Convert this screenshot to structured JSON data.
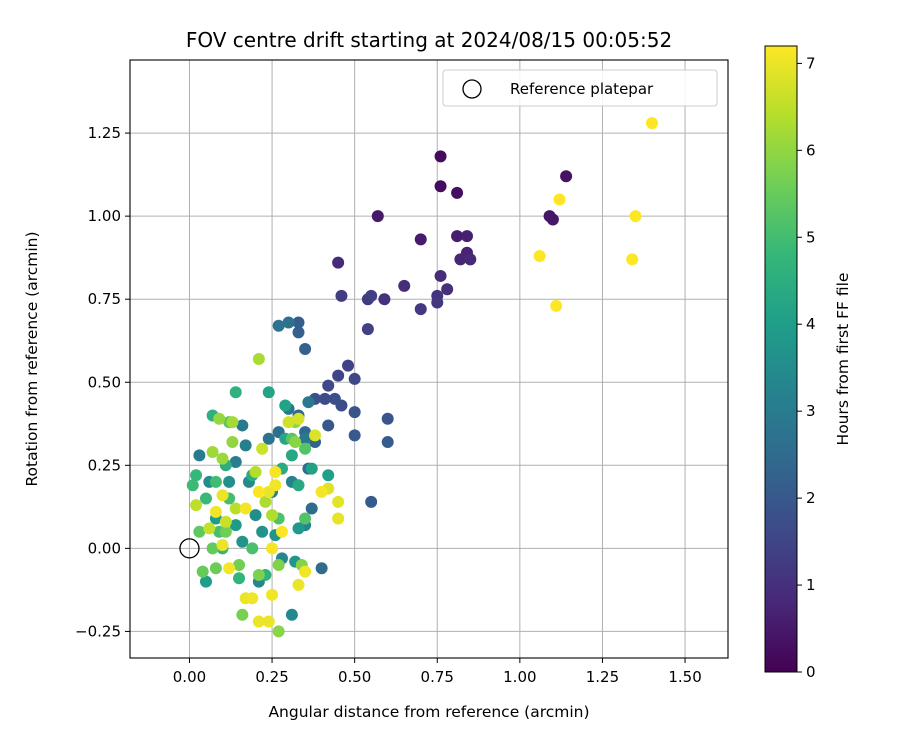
{
  "chart_data": {
    "type": "scatter",
    "title": "FOV centre drift starting at 2024/08/15 00:05:52",
    "xlabel": "Angular distance from reference (arcmin)",
    "ylabel": "Rotation from reference (arcmin)",
    "xlim": [
      -0.18,
      1.63
    ],
    "ylim": [
      -0.33,
      1.47
    ],
    "xticks": [
      0.0,
      0.25,
      0.5,
      0.75,
      1.0,
      1.25,
      1.5
    ],
    "xtick_labels": [
      "0.00",
      "0.25",
      "0.50",
      "0.75",
      "1.00",
      "1.25",
      "1.50"
    ],
    "yticks": [
      -0.25,
      0.0,
      0.25,
      0.5,
      0.75,
      1.0,
      1.25
    ],
    "ytick_labels": [
      "−0.25",
      "0.00",
      "0.25",
      "0.50",
      "0.75",
      "1.00",
      "1.25"
    ],
    "grid": true,
    "legend": {
      "position": "top-right",
      "entries": [
        {
          "label": "Reference platepar",
          "marker": "hollow-circle"
        }
      ]
    },
    "reference_point": {
      "x": 0.0,
      "y": 0.0
    },
    "colorbar": {
      "label": "Hours from first FF file",
      "colormap": "viridis",
      "range": [
        0,
        7.2
      ],
      "ticks": [
        0,
        1,
        2,
        3,
        4,
        5,
        6,
        7
      ],
      "tick_labels": [
        "0",
        "1",
        "2",
        "3",
        "4",
        "5",
        "6",
        "7"
      ]
    },
    "series": [
      {
        "points": [
          [
            0.76,
            1.18,
            0.2
          ],
          [
            0.76,
            1.09,
            0.25
          ],
          [
            0.81,
            1.07,
            0.3
          ],
          [
            1.14,
            1.12,
            0.35
          ],
          [
            1.09,
            1.0,
            0.4
          ],
          [
            1.1,
            0.99,
            0.45
          ],
          [
            0.57,
            1.0,
            0.5
          ],
          [
            0.7,
            0.93,
            0.55
          ],
          [
            0.81,
            0.94,
            0.6
          ],
          [
            0.84,
            0.94,
            0.65
          ],
          [
            0.84,
            0.89,
            0.7
          ],
          [
            0.82,
            0.87,
            0.75
          ],
          [
            0.85,
            0.87,
            0.8
          ],
          [
            0.45,
            0.86,
            0.85
          ],
          [
            0.76,
            0.82,
            0.9
          ],
          [
            0.65,
            0.79,
            0.95
          ],
          [
            0.78,
            0.78,
            1.0
          ],
          [
            0.59,
            0.75,
            1.05
          ],
          [
            0.75,
            0.76,
            1.1
          ],
          [
            0.75,
            0.74,
            1.15
          ],
          [
            0.7,
            0.72,
            1.2
          ],
          [
            0.54,
            0.75,
            1.25
          ],
          [
            0.46,
            0.76,
            1.3
          ],
          [
            0.55,
            0.76,
            1.35
          ],
          [
            0.54,
            0.66,
            1.4
          ],
          [
            0.48,
            0.55,
            1.45
          ],
          [
            0.45,
            0.52,
            1.5
          ],
          [
            0.5,
            0.51,
            1.55
          ],
          [
            0.42,
            0.49,
            1.6
          ],
          [
            0.41,
            0.45,
            1.65
          ],
          [
            0.46,
            0.43,
            1.7
          ],
          [
            0.44,
            0.45,
            1.75
          ],
          [
            0.38,
            0.45,
            1.8
          ],
          [
            0.5,
            0.41,
            1.85
          ],
          [
            0.6,
            0.39,
            1.9
          ],
          [
            0.42,
            0.37,
            1.95
          ],
          [
            0.5,
            0.34,
            2.0
          ],
          [
            0.55,
            0.14,
            2.05
          ],
          [
            0.6,
            0.32,
            2.1
          ],
          [
            0.33,
            0.68,
            2.15
          ],
          [
            0.33,
            0.65,
            2.2
          ],
          [
            0.35,
            0.6,
            2.25
          ],
          [
            0.38,
            0.32,
            2.3
          ],
          [
            0.33,
            0.4,
            2.35
          ],
          [
            0.35,
            0.35,
            2.4
          ],
          [
            0.36,
            0.24,
            2.45
          ],
          [
            0.37,
            0.12,
            2.5
          ],
          [
            0.4,
            -0.06,
            2.55
          ],
          [
            0.27,
            0.35,
            2.6
          ],
          [
            0.3,
            0.68,
            2.65
          ],
          [
            0.27,
            0.67,
            2.7
          ],
          [
            0.24,
            0.33,
            2.75
          ],
          [
            0.3,
            0.42,
            2.8
          ],
          [
            0.36,
            0.44,
            2.85
          ],
          [
            0.35,
            0.33,
            2.9
          ],
          [
            0.16,
            0.37,
            2.95
          ],
          [
            0.03,
            0.28,
            3.0
          ],
          [
            0.14,
            0.26,
            3.05
          ],
          [
            0.17,
            0.31,
            3.1
          ],
          [
            0.25,
            0.17,
            3.15
          ],
          [
            0.31,
            0.2,
            3.2
          ],
          [
            0.35,
            0.07,
            3.25
          ],
          [
            0.28,
            -0.03,
            3.3
          ],
          [
            0.21,
            -0.1,
            3.35
          ],
          [
            0.31,
            -0.2,
            3.4
          ],
          [
            0.18,
            0.2,
            3.45
          ],
          [
            0.2,
            0.1,
            3.5
          ],
          [
            0.06,
            0.2,
            3.55
          ],
          [
            0.12,
            0.2,
            3.6
          ],
          [
            0.22,
            0.05,
            3.65
          ],
          [
            0.16,
            0.02,
            3.7
          ],
          [
            0.26,
            0.04,
            3.75
          ],
          [
            0.32,
            -0.04,
            3.8
          ],
          [
            0.33,
            0.06,
            3.85
          ],
          [
            0.14,
            0.07,
            3.9
          ],
          [
            0.08,
            0.09,
            3.95
          ],
          [
            0.05,
            -0.1,
            4.0
          ],
          [
            0.42,
            0.22,
            4.05
          ],
          [
            0.37,
            0.24,
            4.1
          ],
          [
            0.29,
            0.43,
            4.15
          ],
          [
            0.24,
            0.47,
            4.2
          ],
          [
            0.29,
            0.33,
            4.25
          ],
          [
            0.31,
            0.28,
            4.3
          ],
          [
            0.33,
            0.19,
            4.35
          ],
          [
            0.28,
            0.24,
            4.4
          ],
          [
            0.19,
            0.22,
            4.45
          ],
          [
            0.11,
            0.25,
            4.5
          ],
          [
            0.07,
            0.4,
            4.55
          ],
          [
            0.14,
            0.47,
            4.6
          ],
          [
            0.23,
            -0.08,
            4.65
          ],
          [
            0.15,
            -0.09,
            4.7
          ],
          [
            0.1,
            0.0,
            4.75
          ],
          [
            0.02,
            0.22,
            4.8
          ],
          [
            0.05,
            0.15,
            4.85
          ],
          [
            0.01,
            0.19,
            4.9
          ],
          [
            0.08,
            0.2,
            4.95
          ],
          [
            0.12,
            0.15,
            5.0
          ],
          [
            0.09,
            0.05,
            5.05
          ],
          [
            0.19,
            0.0,
            5.1
          ],
          [
            0.27,
            0.09,
            5.15
          ],
          [
            0.35,
            0.09,
            5.2
          ],
          [
            0.35,
            0.3,
            5.25
          ],
          [
            0.31,
            0.33,
            5.3
          ],
          [
            0.12,
            0.38,
            5.35
          ],
          [
            0.03,
            0.05,
            5.4
          ],
          [
            0.07,
            0.0,
            5.45
          ],
          [
            0.04,
            -0.07,
            5.5
          ],
          [
            0.08,
            -0.06,
            5.55
          ],
          [
            0.11,
            0.05,
            5.6
          ],
          [
            0.15,
            -0.05,
            5.65
          ],
          [
            0.16,
            -0.2,
            5.7
          ],
          [
            0.21,
            -0.08,
            5.75
          ],
          [
            0.27,
            -0.05,
            5.8
          ],
          [
            0.34,
            -0.05,
            5.85
          ],
          [
            0.32,
            0.32,
            5.9
          ],
          [
            0.32,
            0.38,
            5.95
          ],
          [
            0.13,
            0.32,
            6.0
          ],
          [
            0.09,
            0.39,
            6.05
          ],
          [
            0.1,
            0.27,
            6.1
          ],
          [
            0.07,
            0.29,
            6.15
          ],
          [
            0.13,
            0.38,
            6.2
          ],
          [
            0.21,
            0.57,
            6.25
          ],
          [
            0.23,
            0.14,
            6.3
          ],
          [
            0.25,
            0.1,
            6.35
          ],
          [
            0.2,
            0.23,
            6.4
          ],
          [
            0.14,
            0.12,
            6.45
          ],
          [
            0.02,
            0.13,
            6.5
          ],
          [
            0.06,
            0.06,
            6.55
          ],
          [
            0.11,
            0.08,
            6.6
          ],
          [
            0.22,
            0.3,
            6.65
          ],
          [
            0.3,
            0.38,
            6.7
          ],
          [
            0.33,
            0.39,
            6.75
          ],
          [
            0.38,
            0.34,
            6.8
          ],
          [
            0.42,
            0.18,
            6.85
          ],
          [
            0.45,
            0.14,
            6.9
          ],
          [
            0.45,
            0.09,
            6.95
          ],
          [
            0.24,
            0.17,
            7.0
          ],
          [
            0.26,
            0.19,
            7.05
          ],
          [
            0.26,
            0.23,
            7.1
          ],
          [
            0.21,
            0.17,
            7.15
          ],
          [
            0.17,
            0.12,
            7.1
          ],
          [
            0.1,
            0.16,
            7.0
          ],
          [
            0.08,
            0.11,
            7.05
          ],
          [
            0.1,
            0.01,
            7.0
          ],
          [
            0.12,
            -0.06,
            7.1
          ],
          [
            0.17,
            -0.15,
            7.0
          ],
          [
            0.19,
            -0.15,
            7.05
          ],
          [
            0.21,
            -0.22,
            7.0
          ],
          [
            0.24,
            -0.22,
            7.0
          ],
          [
            0.25,
            -0.14,
            7.05
          ],
          [
            0.25,
            0.0,
            7.1
          ],
          [
            0.28,
            0.05,
            7.15
          ],
          [
            0.33,
            -0.11,
            7.0
          ],
          [
            0.35,
            -0.07,
            7.05
          ],
          [
            0.4,
            0.17,
            7.1
          ],
          [
            0.27,
            -0.25,
            5.9
          ],
          [
            1.4,
            1.28,
            7.2
          ],
          [
            1.12,
            1.05,
            7.2
          ],
          [
            1.35,
            1.0,
            7.2
          ],
          [
            1.06,
            0.88,
            7.2
          ],
          [
            1.34,
            0.87,
            7.2
          ],
          [
            1.11,
            0.73,
            7.2
          ]
        ]
      }
    ]
  }
}
